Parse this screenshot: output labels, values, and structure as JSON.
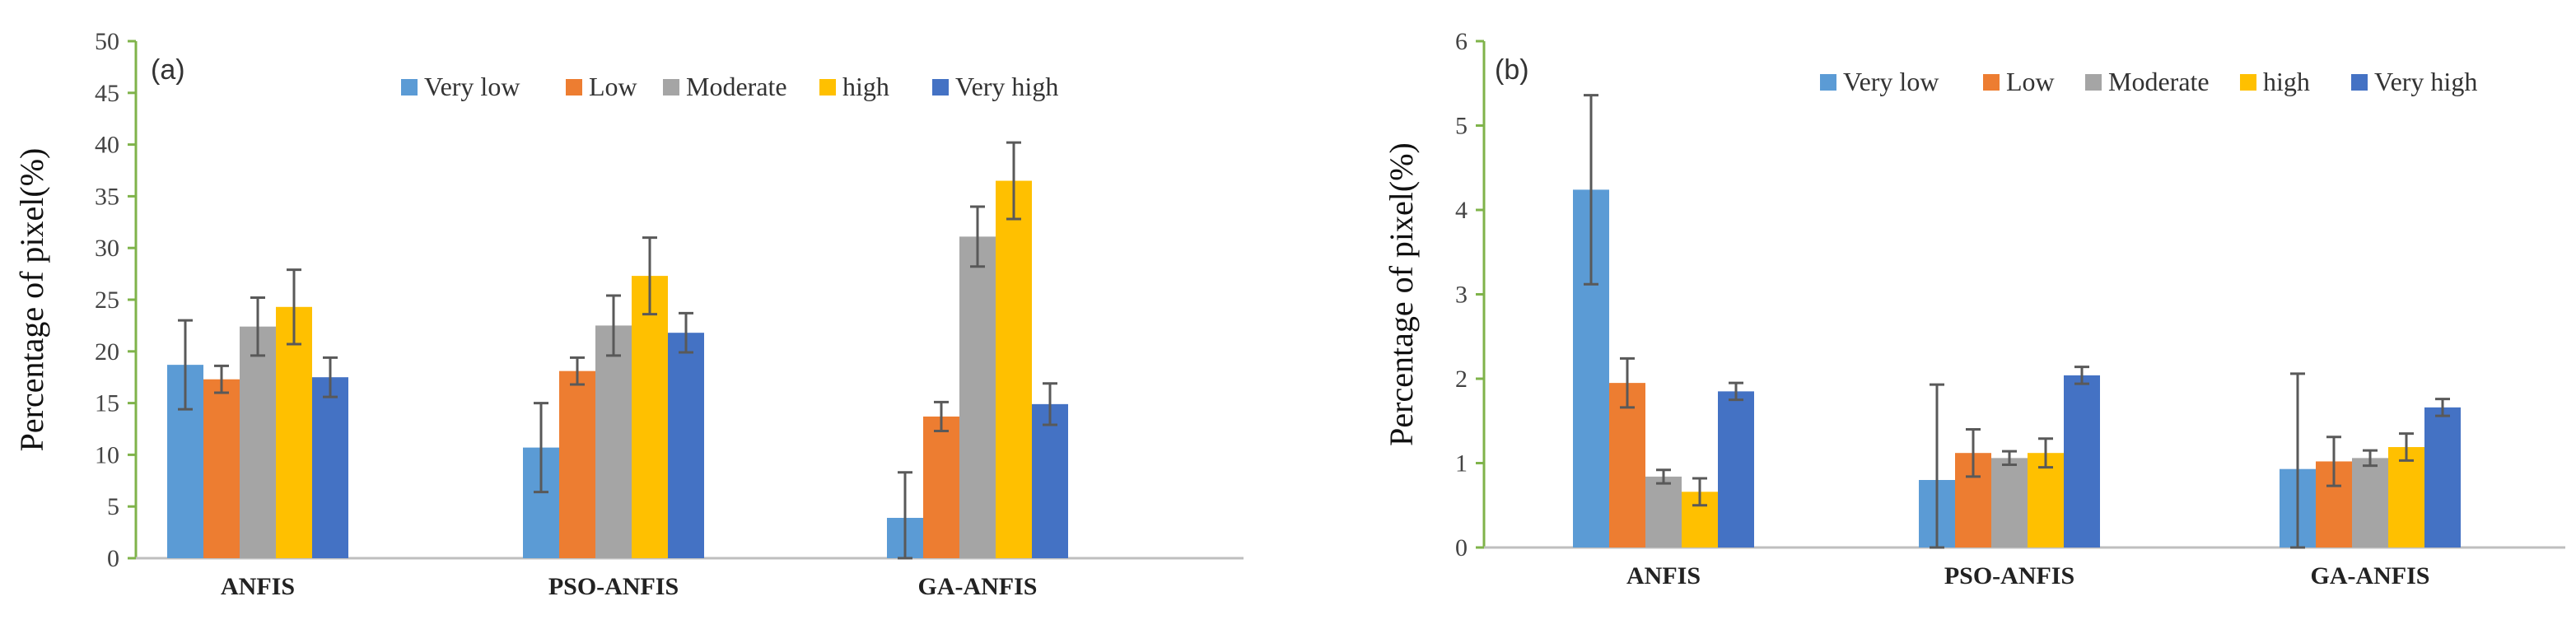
{
  "chart_data": [
    {
      "type": "bar",
      "panel_label": "(a)",
      "ylabel": "Percentage of pixel(%)",
      "xlabel": "",
      "ylim": [
        0,
        50
      ],
      "yticks": [
        0,
        5,
        10,
        15,
        20,
        25,
        30,
        35,
        40,
        45,
        50
      ],
      "categories": [
        "ANFIS",
        "PSO-ANFIS",
        "GA-ANFIS"
      ],
      "legend_position": "top-right",
      "series": [
        {
          "name": "Very low",
          "color": "#5B9BD5",
          "values": [
            18.7,
            10.7,
            3.9
          ],
          "errors": [
            4.3,
            4.3,
            4.4
          ]
        },
        {
          "name": "Low",
          "color": "#ED7D31",
          "values": [
            17.3,
            18.1,
            13.7
          ],
          "errors": [
            1.3,
            1.3,
            1.4
          ]
        },
        {
          "name": "Moderate",
          "color": "#A5A5A5",
          "values": [
            22.4,
            22.5,
            31.1
          ],
          "errors": [
            2.8,
            2.9,
            2.9
          ]
        },
        {
          "name": "high",
          "color": "#FFC000",
          "values": [
            24.3,
            27.3,
            36.5
          ],
          "errors": [
            3.6,
            3.7,
            3.7
          ]
        },
        {
          "name": "Very high",
          "color": "#4472C4",
          "values": [
            17.5,
            21.8,
            14.9
          ],
          "errors": [
            1.9,
            1.9,
            2.0
          ]
        }
      ]
    },
    {
      "type": "bar",
      "panel_label": "(b)",
      "ylabel": "Percentage of pixel(%)",
      "xlabel": "",
      "ylim": [
        0,
        6
      ],
      "yticks": [
        0,
        1,
        2,
        3,
        4,
        5,
        6
      ],
      "categories": [
        "ANFIS",
        "PSO-ANFIS",
        "GA-ANFIS"
      ],
      "legend_position": "top-right",
      "series": [
        {
          "name": "Very low",
          "color": "#5B9BD5",
          "values": [
            4.24,
            0.8,
            0.93
          ],
          "errors": [
            1.12,
            1.13,
            1.13
          ]
        },
        {
          "name": "Low",
          "color": "#ED7D31",
          "values": [
            1.95,
            1.12,
            1.02
          ],
          "errors": [
            0.29,
            0.28,
            0.29
          ]
        },
        {
          "name": "Moderate",
          "color": "#A5A5A5",
          "values": [
            0.84,
            1.06,
            1.06
          ],
          "errors": [
            0.08,
            0.08,
            0.09
          ]
        },
        {
          "name": "high",
          "color": "#FFC000",
          "values": [
            0.66,
            1.12,
            1.19
          ],
          "errors": [
            0.16,
            0.17,
            0.16
          ]
        },
        {
          "name": "Very high",
          "color": "#4472C4",
          "values": [
            1.85,
            2.04,
            1.66
          ],
          "errors": [
            0.1,
            0.1,
            0.1
          ]
        }
      ]
    }
  ]
}
